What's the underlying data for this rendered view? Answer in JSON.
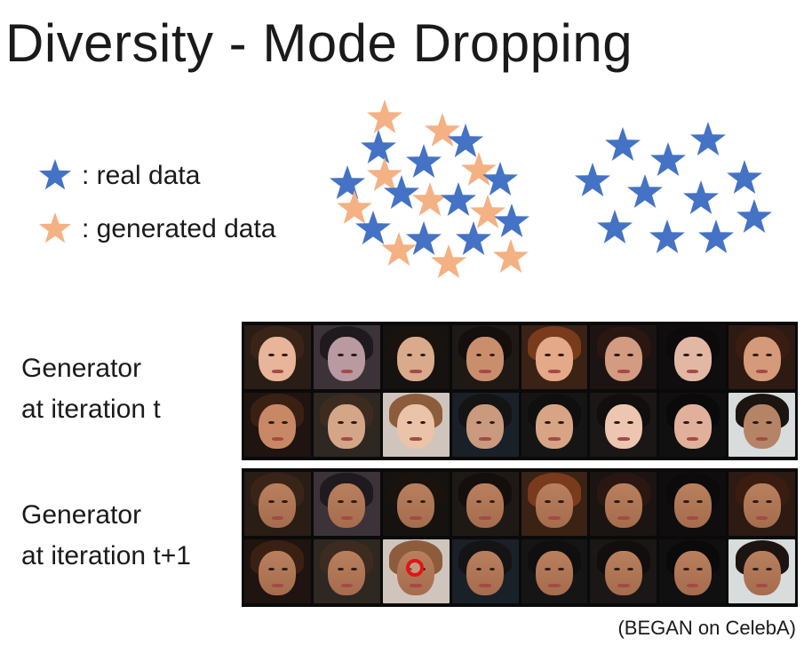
{
  "title": "Diversity - Mode Dropping",
  "legend": {
    "real_label": ": real data",
    "generated_label": ": generated data"
  },
  "colors": {
    "real_star": "#4472c4",
    "generated_star": "#f4b183"
  },
  "rows": [
    {
      "label_line1": "Generator",
      "label_line2": "at iteration t"
    },
    {
      "label_line1": "Generator",
      "label_line2": "at iteration t+1"
    }
  ],
  "caption": "(BEGAN on CelebA)"
}
